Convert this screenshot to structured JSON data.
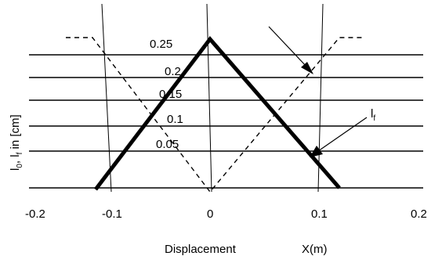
{
  "figure": {
    "level_labels": [
      "0.25",
      "0.2",
      "0.15",
      "0.1",
      "0.05"
    ],
    "x_ticks": [
      "-0.2",
      "-0.1",
      "0",
      "0.1",
      "0.2"
    ],
    "x_label_left": "Displacement",
    "x_label_right": "X(m)",
    "y_label_main": "l",
    "y_label_sub0": "0",
    "y_label_mid": ", l",
    "y_label_subf": "f",
    "y_label_tail": " in [cm]",
    "callout_main": "l",
    "callout_sub": "f"
  },
  "colors": {
    "ink": "#000000",
    "background": "#ffffff"
  }
}
